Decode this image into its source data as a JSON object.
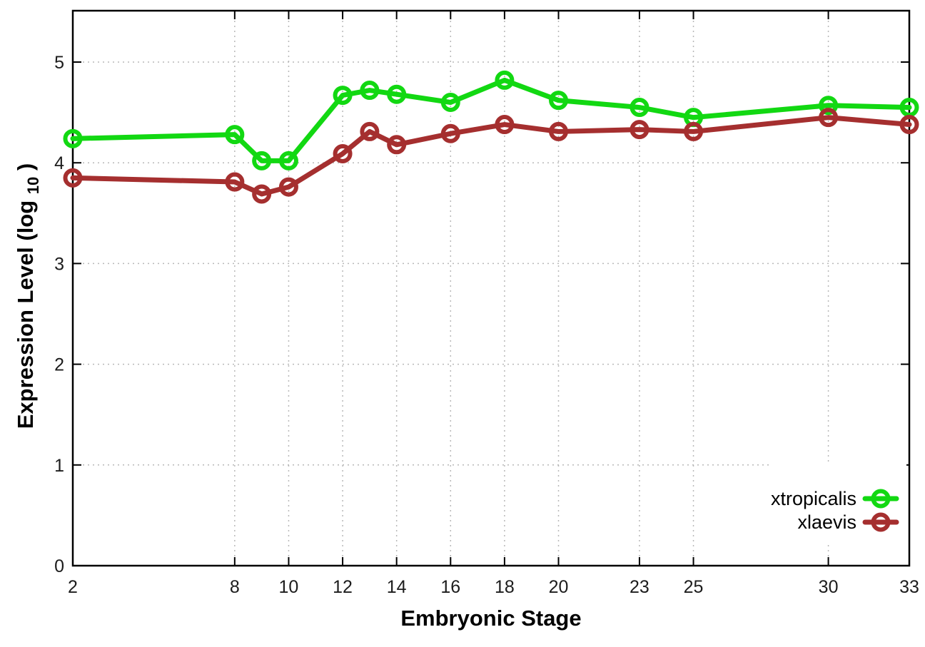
{
  "chart_data": {
    "type": "line",
    "title": "",
    "xlabel": "Embryonic Stage",
    "ylabel_main": "Expression Level (log",
    "ylabel_sub": "10",
    "ylabel_end": ")",
    "x": [
      2,
      8,
      9,
      10,
      12,
      13,
      14,
      16,
      18,
      20,
      23,
      25,
      30,
      33
    ],
    "series": [
      {
        "name": "xtropicalis",
        "color": "#12d812",
        "values": [
          4.24,
          4.28,
          4.02,
          4.02,
          4.67,
          4.72,
          4.68,
          4.6,
          4.82,
          4.62,
          4.55,
          4.45,
          4.57,
          4.55
        ]
      },
      {
        "name": "xlaevis",
        "color": "#a52f2f",
        "values": [
          3.85,
          3.81,
          3.69,
          3.76,
          4.09,
          4.31,
          4.18,
          4.29,
          4.38,
          4.31,
          4.33,
          4.31,
          4.45,
          4.38
        ]
      }
    ],
    "axes": {
      "x": {
        "min": 2,
        "max": 33,
        "ticks": [
          2,
          8,
          10,
          12,
          14,
          16,
          18,
          20,
          23,
          25,
          30,
          33
        ]
      },
      "y": {
        "min": 0,
        "max": 5.51,
        "ticks": [
          0,
          1,
          2,
          3,
          4,
          5
        ]
      }
    },
    "grid": true,
    "legend": {
      "position": "bottom-right",
      "entries": [
        "xtropicalis",
        "xlaevis"
      ]
    },
    "colors": {
      "border": "#000000",
      "gridline": "#b8b8b8",
      "background": "#ffffff"
    }
  }
}
